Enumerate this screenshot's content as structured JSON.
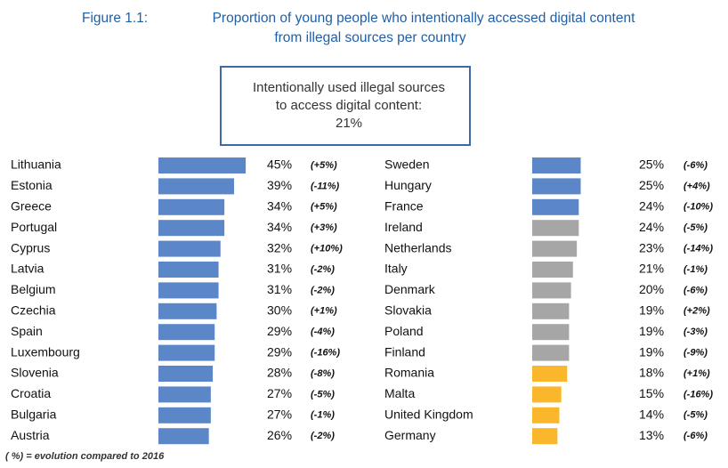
{
  "chart_data": {
    "type": "bar",
    "figure_label": "Figure 1.1:",
    "title": [
      "Proportion of young people who intentionally accessed digital content",
      "from illegal sources per country"
    ],
    "callout": [
      "Intentionally used illegal sources",
      "to access digital content:",
      "21%"
    ],
    "footnote": "( %) = evolution compared to 2016",
    "categories": [
      "Lithuania",
      "Estonia",
      "Greece",
      "Portugal",
      "Cyprus",
      "Latvia",
      "Belgium",
      "Czechia",
      "Spain",
      "Luxembourg",
      "Slovenia",
      "Croatia",
      "Bulgaria",
      "Austria",
      "Sweden",
      "Hungary",
      "France",
      "Ireland",
      "Netherlands",
      "Italy",
      "Denmark",
      "Slovakia",
      "Poland",
      "Finland",
      "Romania",
      "Malta",
      "United Kingdom",
      "Germany"
    ],
    "values": [
      45,
      39,
      34,
      34,
      32,
      31,
      31,
      30,
      29,
      29,
      28,
      27,
      27,
      26,
      25,
      25,
      24,
      24,
      23,
      21,
      20,
      19,
      19,
      19,
      18,
      15,
      14,
      13
    ],
    "value_labels": [
      "45%",
      "39%",
      "34%",
      "34%",
      "32%",
      "31%",
      "31%",
      "30%",
      "29%",
      "29%",
      "28%",
      "27%",
      "27%",
      "26%",
      "25%",
      "25%",
      "24%",
      "24%",
      "23%",
      "21%",
      "20%",
      "19%",
      "19%",
      "19%",
      "18%",
      "15%",
      "14%",
      "13%"
    ],
    "changes": [
      5,
      -11,
      5,
      3,
      10,
      -2,
      -2,
      1,
      -4,
      -16,
      -8,
      -5,
      -1,
      -2,
      -6,
      4,
      -10,
      -5,
      -14,
      -1,
      -6,
      2,
      -3,
      -9,
      1,
      -16,
      -5,
      -6
    ],
    "change_labels": [
      "(+5%)",
      "(-11%)",
      "(+5%)",
      "(+3%)",
      "(+10%)",
      "(-2%)",
      "(-2%)",
      "(+1%)",
      "(-4%)",
      "(-16%)",
      "(-8%)",
      "(-5%)",
      "(-1%)",
      "(-2%)",
      "(-6%)",
      "(+4%)",
      "(-10%)",
      "(-5%)",
      "(-14%)",
      "(-1%)",
      "(-6%)",
      "(+2%)",
      "(-3%)",
      "(-9%)",
      "(+1%)",
      "(-16%)",
      "(-5%)",
      "(-6%)"
    ],
    "colors": [
      "#5b87c9",
      "#5b87c9",
      "#5b87c9",
      "#5b87c9",
      "#5b87c9",
      "#5b87c9",
      "#5b87c9",
      "#5b87c9",
      "#5b87c9",
      "#5b87c9",
      "#5b87c9",
      "#5b87c9",
      "#5b87c9",
      "#5b87c9",
      "#5b87c9",
      "#5b87c9",
      "#5b87c9",
      "#a6a6a6",
      "#a6a6a6",
      "#a6a6a6",
      "#a6a6a6",
      "#a6a6a6",
      "#a6a6a6",
      "#a6a6a6",
      "#fbb72b",
      "#fbb72b",
      "#fbb72b",
      "#fbb72b"
    ]
  }
}
